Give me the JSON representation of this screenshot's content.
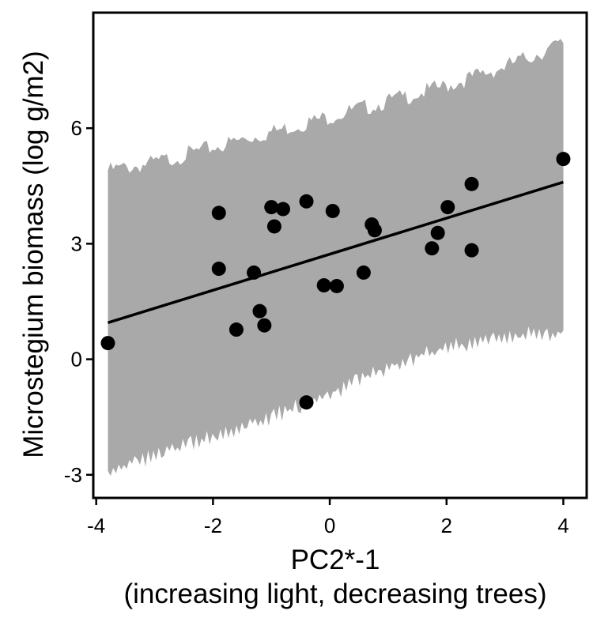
{
  "chart_data": {
    "type": "scatter",
    "title": "",
    "xlabel": "PC2*-1",
    "xlabel_line2": "(increasing light, decreasing trees)",
    "ylabel": "Microstegium biomass (log g/m2)",
    "xlim": [
      -4.05,
      4.4
    ],
    "ylim": [
      -3.6,
      9.0
    ],
    "x_ticks": [
      -4,
      -2,
      0,
      2,
      4
    ],
    "x_tick_labels": [
      "-4",
      "-2",
      "0",
      "2",
      "4"
    ],
    "y_ticks": [
      -3,
      0,
      3,
      6
    ],
    "y_tick_labels": [
      "-3",
      "0",
      "3",
      "6"
    ],
    "grid": false,
    "legend": "none",
    "points": [
      {
        "x": -3.8,
        "y": 0.42
      },
      {
        "x": -1.9,
        "y": 3.8
      },
      {
        "x": -1.9,
        "y": 2.35
      },
      {
        "x": -1.6,
        "y": 0.77
      },
      {
        "x": -1.3,
        "y": 2.25
      },
      {
        "x": -1.2,
        "y": 1.25
      },
      {
        "x": -1.12,
        "y": 0.88
      },
      {
        "x": -1.0,
        "y": 3.95
      },
      {
        "x": -0.95,
        "y": 3.45
      },
      {
        "x": -0.8,
        "y": 3.9
      },
      {
        "x": -0.4,
        "y": 4.1
      },
      {
        "x": -0.4,
        "y": -1.12
      },
      {
        "x": -0.1,
        "y": 1.92
      },
      {
        "x": 0.05,
        "y": 3.85
      },
      {
        "x": 0.12,
        "y": 1.9
      },
      {
        "x": 0.58,
        "y": 2.25
      },
      {
        "x": 0.72,
        "y": 3.5
      },
      {
        "x": 0.77,
        "y": 3.35
      },
      {
        "x": 1.75,
        "y": 2.88
      },
      {
        "x": 1.85,
        "y": 3.28
      },
      {
        "x": 2.02,
        "y": 3.95
      },
      {
        "x": 2.43,
        "y": 4.55
      },
      {
        "x": 2.43,
        "y": 2.83
      },
      {
        "x": 4.0,
        "y": 5.2
      }
    ],
    "fit_line": {
      "x": [
        -3.8,
        4.0
      ],
      "y": [
        0.95,
        4.6
      ]
    },
    "band": {
      "x": [
        -3.8,
        -3.0,
        -2.0,
        -1.0,
        0.0,
        1.0,
        2.0,
        3.0,
        4.0
      ],
      "lower": [
        -2.9,
        -2.5,
        -2.0,
        -1.5,
        -0.9,
        -0.2,
        0.3,
        0.6,
        0.7
      ],
      "upper": [
        4.9,
        5.1,
        5.5,
        5.9,
        6.3,
        6.7,
        7.1,
        7.6,
        8.2
      ]
    },
    "colors": {
      "band": "#a9a9a9",
      "points": "#000000",
      "line": "#000000",
      "axes": "#000000"
    }
  }
}
